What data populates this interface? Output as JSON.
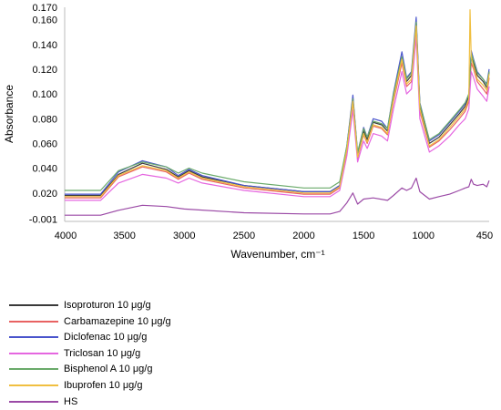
{
  "chart_data": {
    "type": "line",
    "ylabel": "Absorbance",
    "xlabel": "Wavenumber, cm⁻¹",
    "xlim": [
      4000,
      450
    ],
    "x_reversed": true,
    "ylim": [
      -0.003,
      0.17
    ],
    "x_ticks": [
      {
        "value": 4000,
        "label": "4000"
      },
      {
        "value": 3500,
        "label": "3500"
      },
      {
        "value": 3000,
        "label": "3000"
      },
      {
        "value": 2500,
        "label": "2500"
      },
      {
        "value": 2000,
        "label": "2000"
      },
      {
        "value": 1500,
        "label": "1500"
      },
      {
        "value": 1000,
        "label": "1000"
      },
      {
        "value": 450,
        "label": "450"
      }
    ],
    "y_ticks": [
      {
        "value": -0.001,
        "label": "-0.001"
      },
      {
        "value": 0.02,
        "label": "0.020"
      },
      {
        "value": 0.04,
        "label": "0.040"
      },
      {
        "value": 0.06,
        "label": "0.060"
      },
      {
        "value": 0.08,
        "label": "0.080"
      },
      {
        "value": 0.1,
        "label": "0.100"
      },
      {
        "value": 0.12,
        "label": "0.120"
      },
      {
        "value": 0.14,
        "label": "0.140"
      },
      {
        "value": 0.16,
        "label": "0.160"
      },
      {
        "value": 0.17,
        "label": "0.170"
      }
    ],
    "grid": false,
    "legend_position": "bottom-left",
    "series": [
      {
        "name": "Isoproturon 10 μg/g",
        "color": "#3a3a3a",
        "points": [
          [
            4000,
            0.018
          ],
          [
            3700,
            0.018
          ],
          [
            3550,
            0.035
          ],
          [
            3350,
            0.044
          ],
          [
            3150,
            0.039
          ],
          [
            3050,
            0.033
          ],
          [
            2960,
            0.038
          ],
          [
            2850,
            0.033
          ],
          [
            2500,
            0.026
          ],
          [
            2000,
            0.021
          ],
          [
            1780,
            0.021
          ],
          [
            1700,
            0.026
          ],
          [
            1640,
            0.057
          ],
          [
            1590,
            0.097
          ],
          [
            1550,
            0.05
          ],
          [
            1500,
            0.07
          ],
          [
            1470,
            0.063
          ],
          [
            1420,
            0.077
          ],
          [
            1350,
            0.075
          ],
          [
            1300,
            0.07
          ],
          [
            1250,
            0.098
          ],
          [
            1180,
            0.13
          ],
          [
            1140,
            0.11
          ],
          [
            1100,
            0.115
          ],
          [
            1060,
            0.158
          ],
          [
            1030,
            0.09
          ],
          [
            950,
            0.06
          ],
          [
            870,
            0.065
          ],
          [
            780,
            0.075
          ],
          [
            700,
            0.084
          ],
          [
            650,
            0.09
          ],
          [
            620,
            0.098
          ],
          [
            600,
            0.13
          ],
          [
            580,
            0.125
          ],
          [
            550,
            0.115
          ],
          [
            500,
            0.11
          ],
          [
            470,
            0.105
          ],
          [
            450,
            0.118
          ]
        ]
      },
      {
        "name": "Carbamazepine 10 μg/g",
        "color": "#e86262",
        "points": [
          [
            4000,
            0.016
          ],
          [
            3700,
            0.016
          ],
          [
            3550,
            0.033
          ],
          [
            3350,
            0.041
          ],
          [
            3150,
            0.037
          ],
          [
            3050,
            0.031
          ],
          [
            2960,
            0.036
          ],
          [
            2850,
            0.031
          ],
          [
            2500,
            0.024
          ],
          [
            2000,
            0.019
          ],
          [
            1780,
            0.019
          ],
          [
            1700,
            0.024
          ],
          [
            1640,
            0.054
          ],
          [
            1590,
            0.093
          ],
          [
            1550,
            0.048
          ],
          [
            1500,
            0.067
          ],
          [
            1470,
            0.06
          ],
          [
            1420,
            0.074
          ],
          [
            1350,
            0.072
          ],
          [
            1300,
            0.067
          ],
          [
            1250,
            0.094
          ],
          [
            1180,
            0.125
          ],
          [
            1140,
            0.106
          ],
          [
            1100,
            0.11
          ],
          [
            1060,
            0.152
          ],
          [
            1030,
            0.086
          ],
          [
            950,
            0.057
          ],
          [
            870,
            0.062
          ],
          [
            780,
            0.071
          ],
          [
            700,
            0.08
          ],
          [
            650,
            0.086
          ],
          [
            620,
            0.094
          ],
          [
            600,
            0.125
          ],
          [
            580,
            0.12
          ],
          [
            550,
            0.11
          ],
          [
            500,
            0.104
          ],
          [
            470,
            0.1
          ],
          [
            450,
            0.113
          ]
        ]
      },
      {
        "name": "Diclofenac 10 μg/g",
        "color": "#4a55cc",
        "points": [
          [
            4000,
            0.019
          ],
          [
            3700,
            0.019
          ],
          [
            3550,
            0.037
          ],
          [
            3350,
            0.046
          ],
          [
            3150,
            0.041
          ],
          [
            3050,
            0.034
          ],
          [
            2960,
            0.039
          ],
          [
            2850,
            0.034
          ],
          [
            2500,
            0.026
          ],
          [
            2000,
            0.021
          ],
          [
            1780,
            0.021
          ],
          [
            1700,
            0.026
          ],
          [
            1640,
            0.058
          ],
          [
            1590,
            0.099
          ],
          [
            1550,
            0.052
          ],
          [
            1500,
            0.073
          ],
          [
            1470,
            0.065
          ],
          [
            1420,
            0.08
          ],
          [
            1350,
            0.078
          ],
          [
            1300,
            0.072
          ],
          [
            1250,
            0.101
          ],
          [
            1180,
            0.134
          ],
          [
            1140,
            0.113
          ],
          [
            1100,
            0.118
          ],
          [
            1060,
            0.162
          ],
          [
            1030,
            0.093
          ],
          [
            950,
            0.062
          ],
          [
            870,
            0.067
          ],
          [
            780,
            0.077
          ],
          [
            700,
            0.086
          ],
          [
            650,
            0.092
          ],
          [
            620,
            0.1
          ],
          [
            600,
            0.135
          ],
          [
            580,
            0.128
          ],
          [
            550,
            0.118
          ],
          [
            500,
            0.112
          ],
          [
            470,
            0.108
          ],
          [
            450,
            0.12
          ]
        ]
      },
      {
        "name": "Triclosan 10 μg/g",
        "color": "#e566e0",
        "points": [
          [
            4000,
            0.014
          ],
          [
            3700,
            0.014
          ],
          [
            3550,
            0.028
          ],
          [
            3350,
            0.035
          ],
          [
            3150,
            0.032
          ],
          [
            3050,
            0.028
          ],
          [
            2960,
            0.032
          ],
          [
            2850,
            0.028
          ],
          [
            2500,
            0.022
          ],
          [
            2000,
            0.017
          ],
          [
            1780,
            0.017
          ],
          [
            1700,
            0.022
          ],
          [
            1640,
            0.05
          ],
          [
            1590,
            0.087
          ],
          [
            1550,
            0.045
          ],
          [
            1500,
            0.062
          ],
          [
            1470,
            0.056
          ],
          [
            1420,
            0.068
          ],
          [
            1350,
            0.066
          ],
          [
            1300,
            0.062
          ],
          [
            1250,
            0.088
          ],
          [
            1180,
            0.118
          ],
          [
            1140,
            0.1
          ],
          [
            1100,
            0.104
          ],
          [
            1060,
            0.146
          ],
          [
            1030,
            0.08
          ],
          [
            950,
            0.053
          ],
          [
            870,
            0.058
          ],
          [
            780,
            0.066
          ],
          [
            700,
            0.075
          ],
          [
            650,
            0.08
          ],
          [
            620,
            0.088
          ],
          [
            600,
            0.118
          ],
          [
            580,
            0.113
          ],
          [
            550,
            0.104
          ],
          [
            500,
            0.098
          ],
          [
            470,
            0.094
          ],
          [
            450,
            0.106
          ]
        ]
      },
      {
        "name": "Bisphenol A 10 μg/g",
        "color": "#6aaa6a",
        "points": [
          [
            4000,
            0.022
          ],
          [
            3700,
            0.022
          ],
          [
            3550,
            0.038
          ],
          [
            3350,
            0.045
          ],
          [
            3150,
            0.041
          ],
          [
            3050,
            0.036
          ],
          [
            2960,
            0.04
          ],
          [
            2850,
            0.036
          ],
          [
            2500,
            0.029
          ],
          [
            2000,
            0.024
          ],
          [
            1780,
            0.024
          ],
          [
            1700,
            0.029
          ],
          [
            1640,
            0.058
          ],
          [
            1590,
            0.096
          ],
          [
            1550,
            0.053
          ],
          [
            1500,
            0.072
          ],
          [
            1470,
            0.065
          ],
          [
            1420,
            0.078
          ],
          [
            1350,
            0.076
          ],
          [
            1300,
            0.072
          ],
          [
            1250,
            0.1
          ],
          [
            1180,
            0.13
          ],
          [
            1140,
            0.112
          ],
          [
            1100,
            0.117
          ],
          [
            1060,
            0.158
          ],
          [
            1030,
            0.092
          ],
          [
            950,
            0.063
          ],
          [
            870,
            0.068
          ],
          [
            780,
            0.078
          ],
          [
            700,
            0.087
          ],
          [
            650,
            0.093
          ],
          [
            620,
            0.1
          ],
          [
            600,
            0.133
          ],
          [
            580,
            0.127
          ],
          [
            550,
            0.117
          ],
          [
            500,
            0.112
          ],
          [
            470,
            0.107
          ],
          [
            450,
            0.118
          ]
        ]
      },
      {
        "name": "Ibuprofen 10 μg/g",
        "color": "#f0bf40",
        "points": [
          [
            4000,
            0.017
          ],
          [
            3700,
            0.017
          ],
          [
            3550,
            0.034
          ],
          [
            3350,
            0.042
          ],
          [
            3150,
            0.038
          ],
          [
            3050,
            0.032
          ],
          [
            2960,
            0.037
          ],
          [
            2850,
            0.032
          ],
          [
            2500,
            0.025
          ],
          [
            2000,
            0.02
          ],
          [
            1780,
            0.02
          ],
          [
            1700,
            0.025
          ],
          [
            1640,
            0.055
          ],
          [
            1590,
            0.094
          ],
          [
            1550,
            0.049
          ],
          [
            1500,
            0.068
          ],
          [
            1470,
            0.061
          ],
          [
            1420,
            0.075
          ],
          [
            1350,
            0.073
          ],
          [
            1300,
            0.068
          ],
          [
            1250,
            0.096
          ],
          [
            1180,
            0.128
          ],
          [
            1140,
            0.108
          ],
          [
            1100,
            0.112
          ],
          [
            1060,
            0.155
          ],
          [
            1030,
            0.088
          ],
          [
            950,
            0.058
          ],
          [
            870,
            0.063
          ],
          [
            780,
            0.073
          ],
          [
            700,
            0.082
          ],
          [
            650,
            0.088
          ],
          [
            620,
            0.096
          ],
          [
            610,
            0.168
          ],
          [
            600,
            0.13
          ],
          [
            580,
            0.122
          ],
          [
            550,
            0.112
          ],
          [
            500,
            0.107
          ],
          [
            470,
            0.103
          ],
          [
            450,
            0.116
          ]
        ]
      },
      {
        "name": "HS",
        "color": "#9b4aa6",
        "points": [
          [
            4000,
            0.002
          ],
          [
            3700,
            0.002
          ],
          [
            3550,
            0.006
          ],
          [
            3350,
            0.01
          ],
          [
            3150,
            0.009
          ],
          [
            3000,
            0.007
          ],
          [
            2500,
            0.004
          ],
          [
            2000,
            0.003
          ],
          [
            1780,
            0.003
          ],
          [
            1700,
            0.005
          ],
          [
            1640,
            0.012
          ],
          [
            1590,
            0.02
          ],
          [
            1550,
            0.011
          ],
          [
            1500,
            0.015
          ],
          [
            1420,
            0.016
          ],
          [
            1300,
            0.014
          ],
          [
            1250,
            0.018
          ],
          [
            1180,
            0.024
          ],
          [
            1140,
            0.022
          ],
          [
            1100,
            0.024
          ],
          [
            1060,
            0.032
          ],
          [
            1030,
            0.021
          ],
          [
            950,
            0.015
          ],
          [
            870,
            0.017
          ],
          [
            780,
            0.019
          ],
          [
            700,
            0.022
          ],
          [
            650,
            0.024
          ],
          [
            620,
            0.025
          ],
          [
            600,
            0.031
          ],
          [
            580,
            0.027
          ],
          [
            550,
            0.026
          ],
          [
            500,
            0.027
          ],
          [
            470,
            0.025
          ],
          [
            450,
            0.03
          ]
        ]
      }
    ]
  }
}
